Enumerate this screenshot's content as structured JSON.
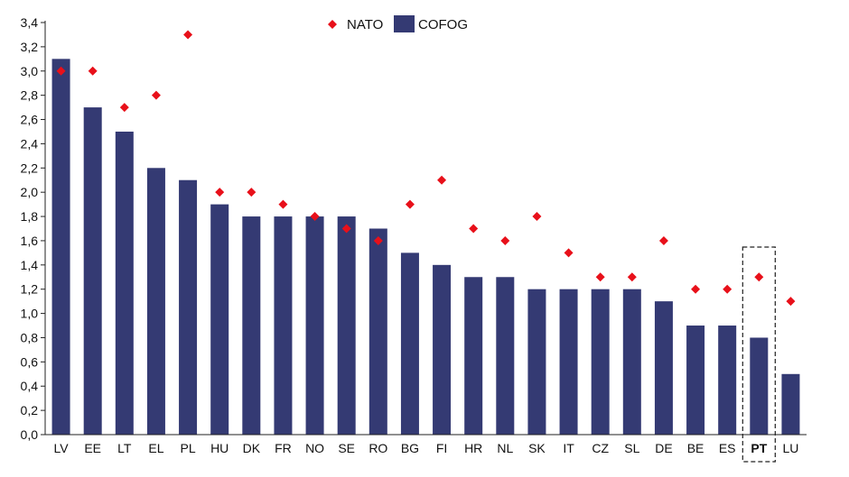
{
  "chart_data": {
    "type": "bar",
    "title": "",
    "xlabel": "",
    "ylabel": "",
    "ylim": [
      0,
      3.4
    ],
    "ytick_step": 0.2,
    "decimal_separator": ",",
    "grid": false,
    "legend_position": "top-center",
    "highlight_category": "PT",
    "categories": [
      "LV",
      "EE",
      "LT",
      "EL",
      "PL",
      "HU",
      "DK",
      "FR",
      "NO",
      "SE",
      "RO",
      "BG",
      "FI",
      "HR",
      "NL",
      "SK",
      "IT",
      "CZ",
      "SL",
      "DE",
      "BE",
      "ES",
      "PT",
      "LU"
    ],
    "series": [
      {
        "name": "COFOG",
        "kind": "bar",
        "color": "#343a73",
        "values": [
          3.1,
          2.7,
          2.5,
          2.2,
          2.1,
          1.9,
          1.8,
          1.8,
          1.8,
          1.8,
          1.7,
          1.5,
          1.4,
          1.3,
          1.3,
          1.2,
          1.2,
          1.2,
          1.2,
          1.1,
          0.9,
          0.9,
          0.8,
          0.5
        ]
      },
      {
        "name": "NATO",
        "kind": "marker",
        "marker": "diamond",
        "color": "#e8101a",
        "values": [
          3.0,
          3.0,
          2.7,
          2.8,
          3.3,
          2.0,
          2.0,
          1.9,
          1.8,
          1.7,
          1.6,
          1.9,
          2.1,
          1.7,
          1.6,
          1.8,
          1.5,
          1.3,
          1.3,
          1.6,
          1.2,
          1.2,
          1.3,
          1.1
        ]
      }
    ],
    "legend": [
      {
        "label": "NATO",
        "marker": "diamond",
        "color": "#e8101a"
      },
      {
        "label": "COFOG",
        "marker": "square",
        "color": "#343a73"
      }
    ]
  }
}
